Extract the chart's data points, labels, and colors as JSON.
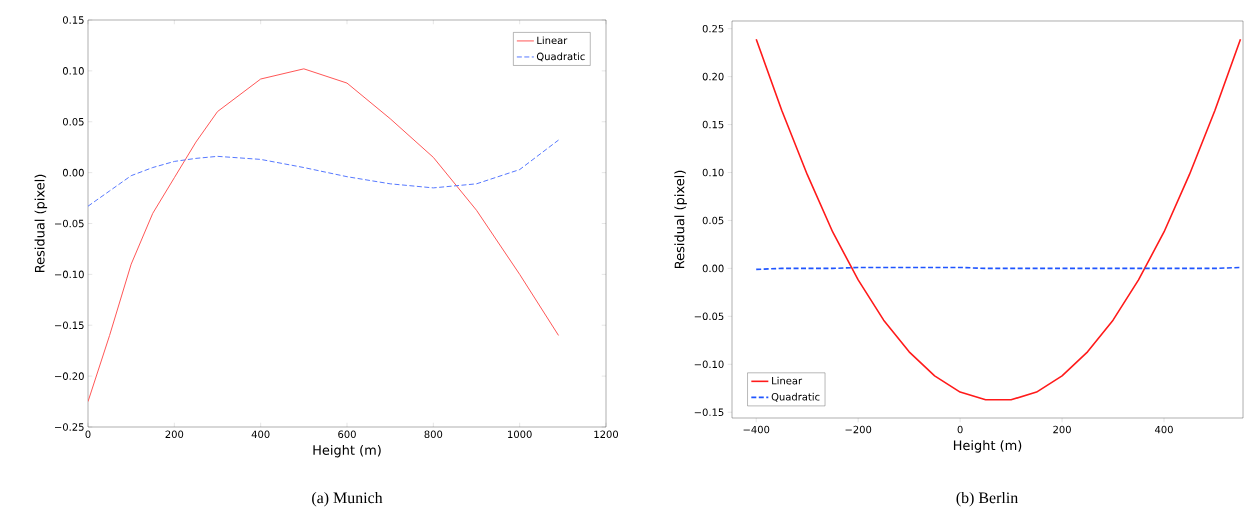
{
  "chart_data": [
    {
      "type": "line",
      "title": "(a) Munich",
      "xlabel": "Height (m)",
      "ylabel": "Residual (pixel)",
      "xlim": [
        0,
        1200
      ],
      "xticks": [
        0,
        200,
        400,
        600,
        800,
        1000,
        1200
      ],
      "ylim": [
        -0.25,
        0.15
      ],
      "yticks": [
        {
          "value": -0.25,
          "label": "−0.25"
        },
        {
          "value": -0.2,
          "label": "−0.20"
        },
        {
          "value": -0.15,
          "label": "−0.15"
        },
        {
          "value": -0.1,
          "label": "−0.10"
        },
        {
          "value": -0.05,
          "label": "−0.05"
        },
        {
          "value": 0,
          "label": "0.00"
        },
        {
          "value": 0.05,
          "label": "0.05"
        },
        {
          "value": 0.1,
          "label": "0.10"
        },
        {
          "value": 0.15,
          "label": "0.15"
        }
      ],
      "legend": "top right",
      "marker": "none",
      "grid": false,
      "x": [
        0,
        50,
        100,
        150,
        200,
        250,
        300,
        400,
        500,
        600,
        700,
        800,
        900,
        1000,
        1090
      ],
      "series": [
        {
          "name": "Linear",
          "color": "#ff5555",
          "line_style": "solid",
          "values": [
            -0.225,
            -0.16,
            -0.09,
            -0.04,
            -0.005,
            0.03,
            0.06,
            0.092,
            0.102,
            0.088,
            0.053,
            0.015,
            -0.037,
            -0.1,
            -0.16
          ]
        },
        {
          "name": "Quadratic",
          "color": "#5577ff",
          "line_style": "dashed",
          "values": [
            -0.033,
            -0.018,
            -0.003,
            0.005,
            0.011,
            0.014,
            0.016,
            0.013,
            0.005,
            -0.004,
            -0.011,
            -0.015,
            -0.011,
            0.003,
            0.032
          ]
        }
      ]
    },
    {
      "type": "line",
      "title": "(b) Berlin",
      "xlabel": "Height (m)",
      "ylabel": "Residual (pixel)",
      "xlim": [
        -447.5,
        555
      ],
      "xticks": [
        {
          "value": -400,
          "label": "−400"
        },
        {
          "value": -200,
          "label": "−200"
        },
        0,
        200,
        400
      ],
      "ylim": [
        -0.156,
        0.258
      ],
      "yticks": [
        {
          "value": -0.15,
          "label": "−0.15"
        },
        {
          "value": -0.1,
          "label": "−0.10"
        },
        {
          "value": -0.05,
          "label": "−0.05"
        },
        {
          "value": 0,
          "label": "0.00"
        },
        {
          "value": 0.05,
          "label": "0.05"
        },
        {
          "value": 0.1,
          "label": "0.10"
        },
        {
          "value": 0.15,
          "label": "0.15"
        },
        {
          "value": 0.2,
          "label": "0.20"
        },
        {
          "value": 0.25,
          "label": "0.25"
        }
      ],
      "legend": "bottom left",
      "marker": "none",
      "grid": false,
      "x": [
        -400,
        -350,
        -300,
        -250,
        -200,
        -150,
        -100,
        -50,
        0,
        50,
        100,
        150,
        200,
        250,
        300,
        350,
        400,
        450,
        500,
        550
      ],
      "series": [
        {
          "name": "Linear",
          "color": "#ff1a1a",
          "line_style": "solid",
          "values": [
            0.239,
            0.165,
            0.098,
            0.038,
            -0.012,
            -0.054,
            -0.087,
            -0.112,
            -0.129,
            -0.137,
            -0.137,
            -0.129,
            -0.112,
            -0.087,
            -0.054,
            -0.012,
            0.038,
            0.098,
            0.165,
            0.239
          ]
        },
        {
          "name": "Quadratic",
          "color": "#1f55ff",
          "line_style": "dashed",
          "values": [
            -0.001,
            0,
            0,
            0,
            0.001,
            0.001,
            0.001,
            0.001,
            0.001,
            0,
            0,
            0,
            0,
            0,
            0,
            0,
            0,
            0,
            0,
            0.001
          ]
        }
      ]
    }
  ]
}
